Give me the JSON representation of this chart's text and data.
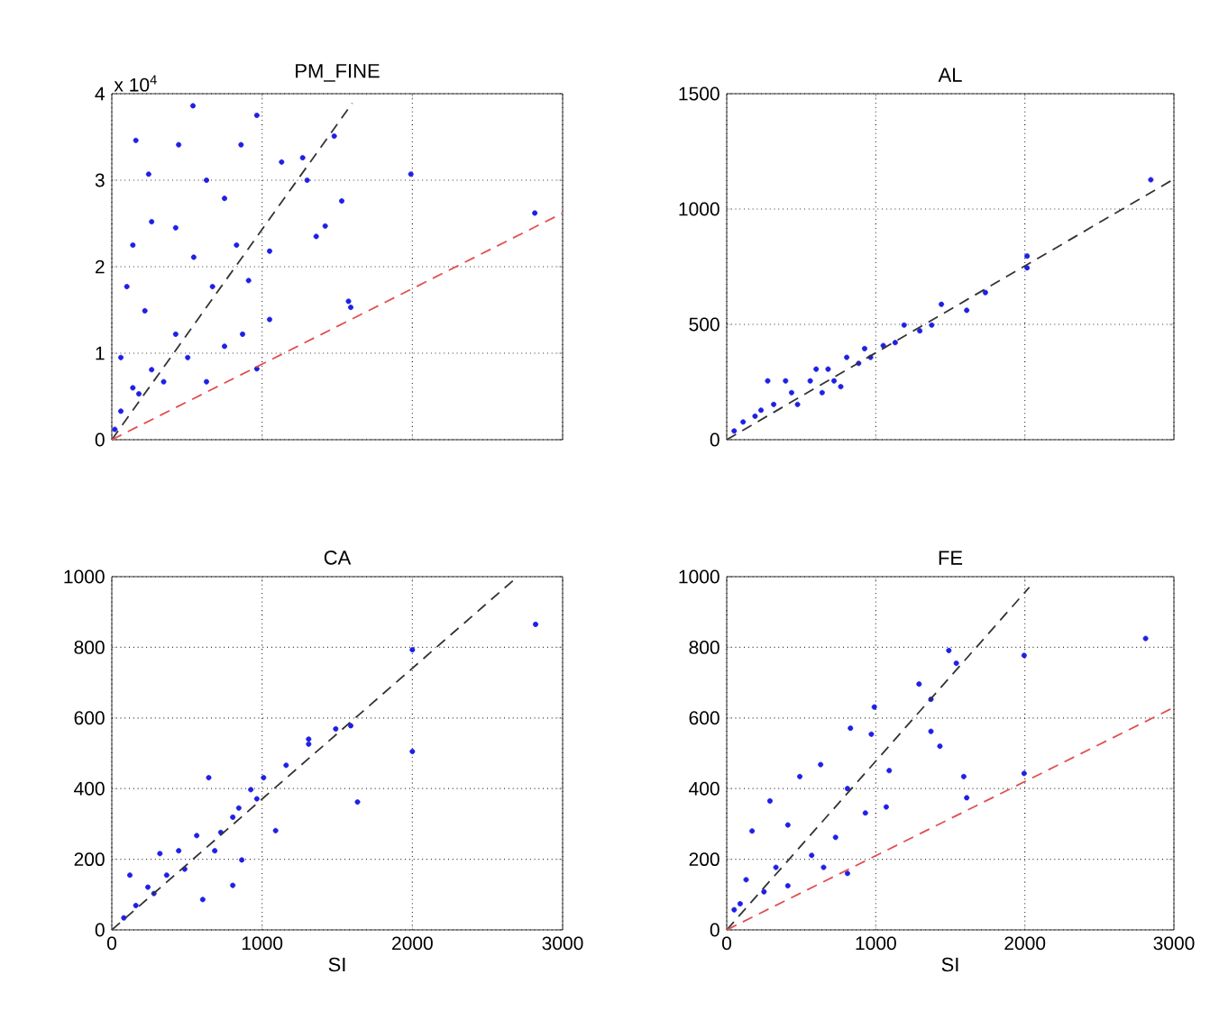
{
  "chart_data": [
    {
      "type": "scatter",
      "title": "PM_FINE",
      "annotations": [
        "x 10$^{4}$"
      ],
      "xlim": [
        0,
        3000
      ],
      "xticks": [
        0,
        1000,
        2000,
        3000
      ],
      "ylim": [
        0,
        4
      ],
      "yticks": [
        0,
        1,
        2,
        3,
        4
      ],
      "grid": true,
      "tick_labels": "y",
      "series": [
        {
          "color": "#1f1fe6",
          "marker": "circle",
          "x": [
            540,
            965,
            160,
            445,
            860,
            1480,
            1270,
            1130,
            1300,
            1990,
            2815,
            1530,
            1420,
            1360,
            1050,
            1050,
            965,
            1590,
            1575,
            245,
            630,
            750,
            425,
            265,
            140,
            545,
            830,
            670,
            910,
            870,
            750,
            100,
            220,
            425,
            505,
            265,
            140,
            60,
            20,
            180,
            345,
            60,
            630
          ],
          "values": [
            3.86,
            3.75,
            3.46,
            3.41,
            3.41,
            3.51,
            3.26,
            3.21,
            3.0,
            3.07,
            2.62,
            2.76,
            2.47,
            2.35,
            2.18,
            1.39,
            0.82,
            1.53,
            1.6,
            3.07,
            3.0,
            2.79,
            2.45,
            2.52,
            2.25,
            2.11,
            2.25,
            1.77,
            1.84,
            1.22,
            1.08,
            1.77,
            1.49,
            1.22,
            0.95,
            0.81,
            0.6,
            0.33,
            0.12,
            0.53,
            0.67,
            0.95,
            0.67
          ]
        },
        {
          "type": "line",
          "color": "#333333",
          "line_style": "dashed",
          "x": [
            0,
            1600
          ],
          "values": [
            0,
            3.89
          ]
        },
        {
          "type": "line",
          "color": "#e05050",
          "line_style": "dashed",
          "x": [
            0,
            3000
          ],
          "values": [
            0,
            2.62
          ]
        }
      ]
    },
    {
      "type": "scatter",
      "title": "AL",
      "xlim": [
        0,
        3000
      ],
      "xticks": [
        0,
        1000,
        2000,
        3000
      ],
      "ylim": [
        0,
        1500
      ],
      "yticks": [
        0,
        500,
        1000,
        1500
      ],
      "grid": true,
      "tick_labels": "y",
      "series": [
        {
          "color": "#1f1fe6",
          "marker": "circle",
          "x": [
            2845,
            2015,
            2015,
            1735,
            1610,
            1440,
            1190,
            1375,
            1295,
            1130,
            1050,
            925,
            805,
            680,
            560,
            435,
            315,
            275,
            190,
            110,
            50,
            395,
            475,
            640,
            720,
            885,
            965,
            230,
            600,
            765
          ],
          "values": [
            1127,
            796,
            745,
            638,
            561,
            587,
            497,
            497,
            472,
            421,
            408,
            395,
            357,
            306,
            255,
            204,
            153,
            255,
            102,
            77,
            38,
            255,
            153,
            204,
            255,
            331,
            357,
            128,
            306,
            230
          ]
        },
        {
          "type": "line",
          "color": "#333333",
          "line_style": "dashed",
          "x": [
            0,
            3000
          ],
          "values": [
            0,
            1130
          ]
        }
      ]
    },
    {
      "type": "scatter",
      "title": "CA",
      "xlabel": "SI",
      "xlim": [
        0,
        3000
      ],
      "xticks": [
        0,
        1000,
        2000,
        3000
      ],
      "ylim": [
        0,
        1000
      ],
      "yticks": [
        0,
        200,
        400,
        600,
        800,
        1000
      ],
      "grid": true,
      "series": [
        {
          "color": "#1f1fe6",
          "marker": "circle",
          "x": [
            2820,
            2000,
            2000,
            1635,
            1310,
            1310,
            1490,
            1590,
            1160,
            1090,
            1010,
            925,
            645,
            805,
            865,
            805,
            845,
            565,
            445,
            320,
            120,
            240,
            365,
            485,
            605,
            160,
            80,
            280,
            725,
            965,
            685
          ],
          "values": [
            865,
            793,
            505,
            362,
            540,
            526,
            569,
            578,
            466,
            281,
            431,
            397,
            431,
            319,
            198,
            126,
            345,
            267,
            224,
            216,
            155,
            121,
            155,
            172,
            86,
            69,
            34,
            103,
            276,
            371,
            224
          ]
        },
        {
          "type": "line",
          "color": "#333333",
          "line_style": "dashed",
          "x": [
            0,
            2700
          ],
          "values": [
            0,
            1000
          ]
        }
      ]
    },
    {
      "type": "scatter",
      "title": "FE",
      "xlabel": "SI",
      "xlim": [
        0,
        3000
      ],
      "xticks": [
        0,
        1000,
        2000,
        3000
      ],
      "ylim": [
        0,
        1000
      ],
      "yticks": [
        0,
        200,
        400,
        600,
        800,
        1000
      ],
      "grid": true,
      "series": [
        {
          "color": "#1f1fe6",
          "marker": "circle",
          "x": [
            2810,
            1995,
            1995,
            1490,
            1540,
            1290,
            1370,
            1370,
            1430,
            1590,
            1610,
            1070,
            990,
            830,
            970,
            1090,
            630,
            490,
            810,
            290,
            810,
            730,
            410,
            170,
            570,
            330,
            130,
            250,
            50,
            90,
            930,
            410,
            650
          ],
          "values": [
            825,
            777,
            443,
            791,
            755,
            696,
            653,
            562,
            520,
            434,
            374,
            348,
            631,
            571,
            554,
            451,
            468,
            434,
            160,
            365,
            400,
            262,
            297,
            280,
            211,
            177,
            142,
            108,
            57,
            74,
            331,
            125,
            177
          ]
        },
        {
          "type": "line",
          "color": "#333333",
          "line_style": "dashed",
          "x": [
            0,
            2030
          ],
          "values": [
            0,
            970
          ]
        },
        {
          "type": "line",
          "color": "#e05050",
          "line_style": "dashed",
          "x": [
            0,
            3000
          ],
          "values": [
            0,
            630
          ]
        }
      ]
    }
  ]
}
